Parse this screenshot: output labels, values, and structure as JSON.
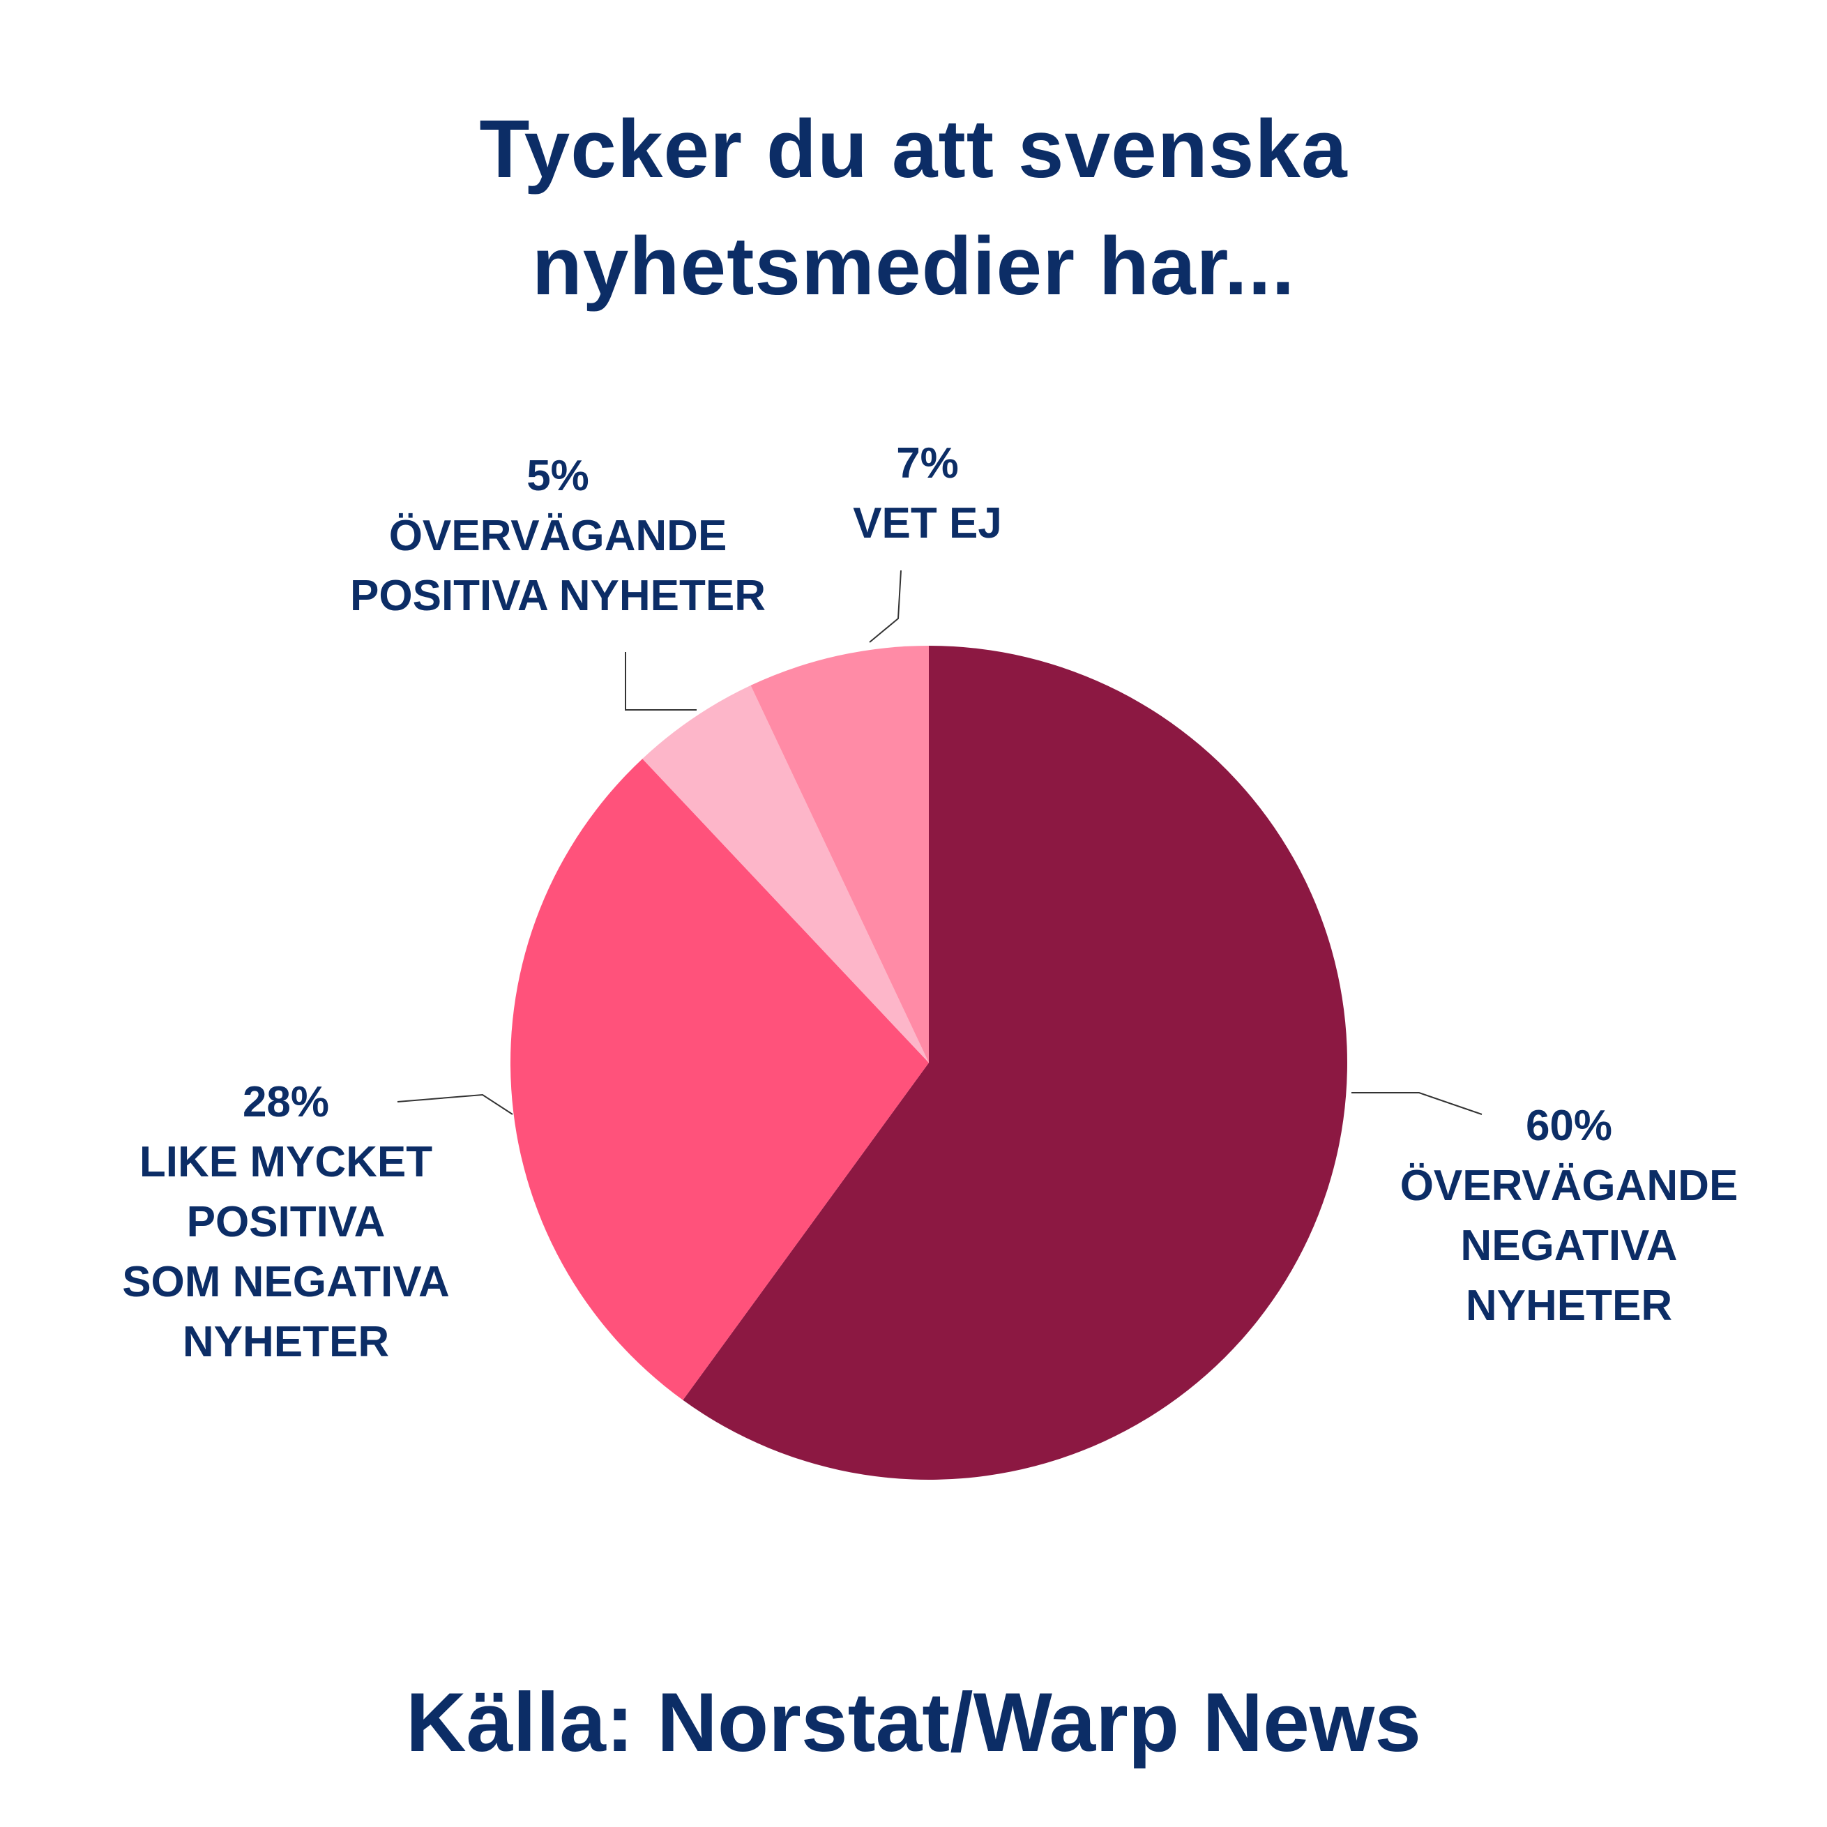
{
  "title_lines": [
    "Tycker du att svenska",
    "nyhetsmedier har..."
  ],
  "source": "Källa: Norstat/Warp News",
  "chart_data": {
    "type": "pie",
    "title": "Tycker du att svenska nyhetsmedier har...",
    "slices": [
      {
        "value": 60,
        "pct_label": "60%",
        "label_lines": [
          "ÖVERVÄGANDE",
          "NEGATIVA",
          "NYHETER"
        ],
        "color": "#8c1842"
      },
      {
        "value": 28,
        "pct_label": "28%",
        "label_lines": [
          "LIKE MYCKET",
          "POSITIVA",
          "SOM NEGATIVA",
          "NYHETER"
        ],
        "color": "#ff527b"
      },
      {
        "value": 5,
        "pct_label": "5%",
        "label_lines": [
          "ÖVERVÄGANDE",
          "POSITIVA NYHETER"
        ],
        "color": "#fdb6c9"
      },
      {
        "value": 7,
        "pct_label": "7%",
        "label_lines": [
          "VET EJ"
        ],
        "color": "#ff8ba6"
      }
    ],
    "legend": "none",
    "grid": false
  }
}
